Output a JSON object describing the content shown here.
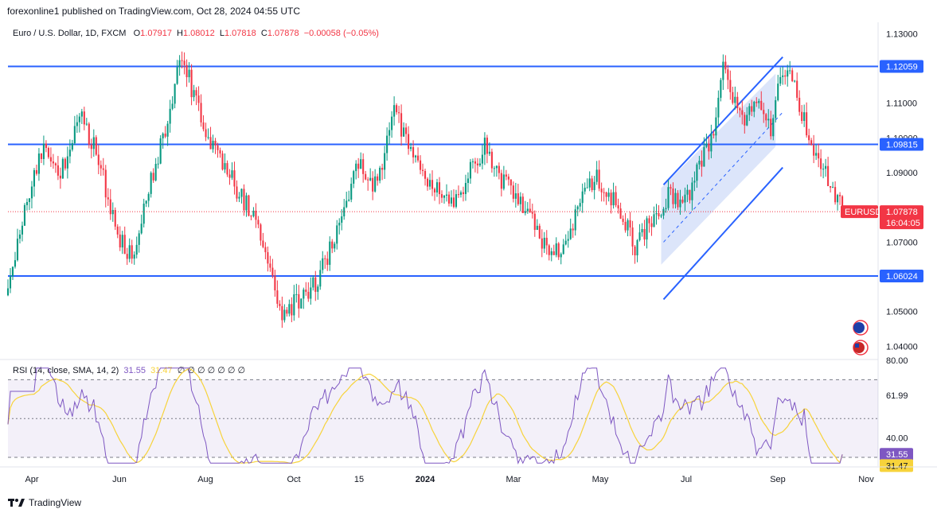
{
  "header": {
    "publisher_text": "forexonline1 published on TradingView.com, Oct 28, 2024 04:55 UTC",
    "symbol": "Euro / U.S. Dollar, 1D, FXCM",
    "ohlc": {
      "o": "1.07917",
      "h": "1.08012",
      "l": "1.07818",
      "c": "1.07878",
      "change": "−0.00058 (−0.05%)"
    }
  },
  "rsi_header": {
    "label": "RSI (14, close, SMA, 14, 2)",
    "rsi": "31.55",
    "sma": "31.47",
    "nulls": "∅ ∅ ∅ ∅ ∅ ∅ ∅"
  },
  "footer": {
    "brand": "TradingView"
  },
  "colors": {
    "up": "#089981",
    "down": "#f23645",
    "hline": "#2962ff",
    "rsi": "#7e57c2",
    "rsi_sma": "#f7d33b",
    "channel_fill": "#c5d4f7"
  },
  "chart_data": [
    {
      "type": "candlestick",
      "title": "Euro / U.S. Dollar, 1D, FXCM",
      "ylim": [
        1.0362,
        1.1333
      ],
      "y_ticks": [
        "1.13000",
        "1.11000",
        "1.10000",
        "1.09000",
        "1.07000",
        "1.05000",
        "1.04000"
      ],
      "x_ticks": [
        "Apr",
        "Jun",
        "Aug",
        "Oct",
        "15",
        "2024",
        "Mar",
        "May",
        "Jul",
        "Sep",
        "Nov"
      ],
      "horizontal_levels": [
        {
          "value": 1.12059,
          "label": "1.12059"
        },
        {
          "value": 1.09815,
          "label": "1.09815"
        },
        {
          "value": 1.06024,
          "label": "1.06024"
        }
      ],
      "current_price": {
        "value": 1.07878,
        "label": "1.07878",
        "countdown": "16:04:05",
        "tag": "EURUSD"
      },
      "price_path": [
        [
          0,
          1.058
        ],
        [
          8,
          1.083
        ],
        [
          15,
          1.097
        ],
        [
          22,
          1.089
        ],
        [
          30,
          1.108
        ],
        [
          38,
          1.094
        ],
        [
          46,
          1.072
        ],
        [
          52,
          1.066
        ],
        [
          56,
          1.076
        ],
        [
          62,
          1.093
        ],
        [
          67,
          1.103
        ],
        [
          73,
          1.125
        ],
        [
          78,
          1.112
        ],
        [
          85,
          1.099
        ],
        [
          92,
          1.09
        ],
        [
          99,
          1.082
        ],
        [
          106,
          1.073
        ],
        [
          112,
          1.057
        ],
        [
          115,
          1.047
        ],
        [
          120,
          1.052
        ],
        [
          128,
          1.057
        ],
        [
          135,
          1.068
        ],
        [
          142,
          1.083
        ],
        [
          148,
          1.094
        ],
        [
          153,
          1.085
        ],
        [
          158,
          1.094
        ],
        [
          162,
          1.11
        ],
        [
          165,
          1.102
        ],
        [
          170,
          1.094
        ],
        [
          177,
          1.087
        ],
        [
          185,
          1.08
        ],
        [
          192,
          1.088
        ],
        [
          200,
          1.098
        ],
        [
          207,
          1.088
        ],
        [
          213,
          1.083
        ],
        [
          219,
          1.079
        ],
        [
          227,
          1.066
        ],
        [
          233,
          1.068
        ],
        [
          240,
          1.082
        ],
        [
          246,
          1.089
        ],
        [
          253,
          1.083
        ],
        [
          259,
          1.075
        ],
        [
          263,
          1.069
        ],
        [
          270,
          1.076
        ],
        [
          277,
          1.083
        ],
        [
          283,
          1.08
        ],
        [
          290,
          1.091
        ],
        [
          296,
          1.102
        ],
        [
          300,
          1.119
        ],
        [
          306,
          1.11
        ],
        [
          310,
          1.105
        ],
        [
          315,
          1.112
        ],
        [
          320,
          1.101
        ],
        [
          324,
          1.118
        ],
        [
          328,
          1.12
        ],
        [
          333,
          1.107
        ],
        [
          338,
          1.097
        ],
        [
          343,
          1.091
        ],
        [
          347,
          1.083
        ],
        [
          350,
          1.079
        ]
      ],
      "channel": {
        "upper": [
          [
            275,
            1.0865
          ],
          [
            325,
            1.1233
          ]
        ],
        "lower": [
          [
            275,
            1.0535
          ],
          [
            325,
            1.0915
          ]
        ]
      }
    },
    {
      "type": "line",
      "title": "RSI (14, close, SMA, 14, 2)",
      "ylim": [
        25.5,
        80
      ],
      "y_ticks": [
        "80.00",
        "61.99",
        "40.00"
      ],
      "bands": [
        70,
        50,
        30
      ],
      "series": [
        {
          "name": "RSI",
          "value_label": "31.55",
          "last": 31.55
        },
        {
          "name": "SMA",
          "value_label": "31.47",
          "last": 31.47
        }
      ]
    }
  ]
}
